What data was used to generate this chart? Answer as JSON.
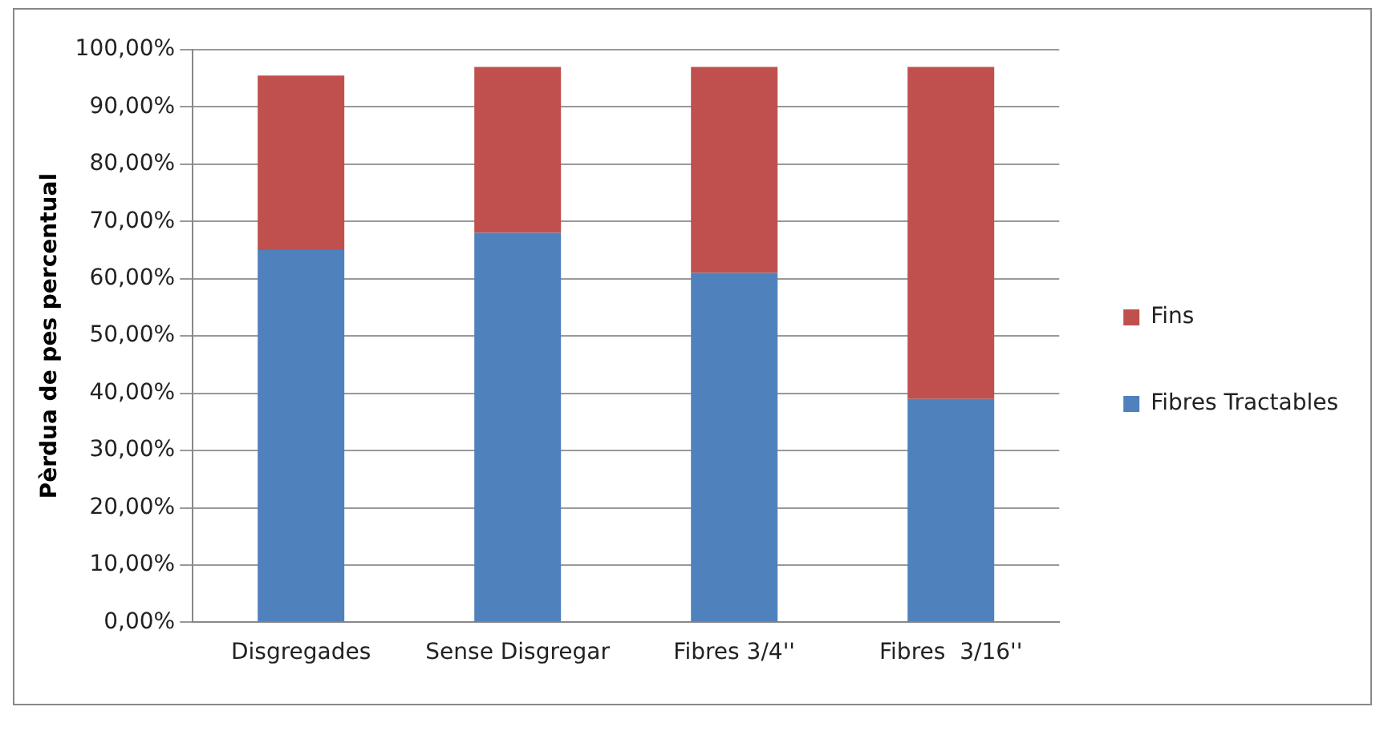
{
  "chart_data": {
    "type": "bar",
    "stacked": true,
    "ylabel": "Pèrdua de pes percentual",
    "categories": [
      "Disgregades",
      "Sense Disgregar",
      "Fibres 3/4''",
      "Fibres  3/16''"
    ],
    "series": [
      {
        "name": "Fibres Tractables",
        "color": "#4f81bd",
        "values": [
          65,
          68,
          61,
          39
        ]
      },
      {
        "name": "Fins",
        "color": "#c0504d",
        "values": [
          30.5,
          29,
          36,
          58
        ]
      }
    ],
    "ylim": [
      0,
      100
    ],
    "yticks": [
      {
        "value": 0,
        "label": "0,00%"
      },
      {
        "value": 10,
        "label": "10,00%"
      },
      {
        "value": 20,
        "label": "20,00%"
      },
      {
        "value": 30,
        "label": "30,00%"
      },
      {
        "value": 40,
        "label": "40,00%"
      },
      {
        "value": 50,
        "label": "50,00%"
      },
      {
        "value": 60,
        "label": "60,00%"
      },
      {
        "value": 70,
        "label": "70,00%"
      },
      {
        "value": 80,
        "label": "80,00%"
      },
      {
        "value": 90,
        "label": "90,00%"
      },
      {
        "value": 100,
        "label": "100,00%"
      }
    ],
    "grid": "y",
    "legend": "right"
  }
}
